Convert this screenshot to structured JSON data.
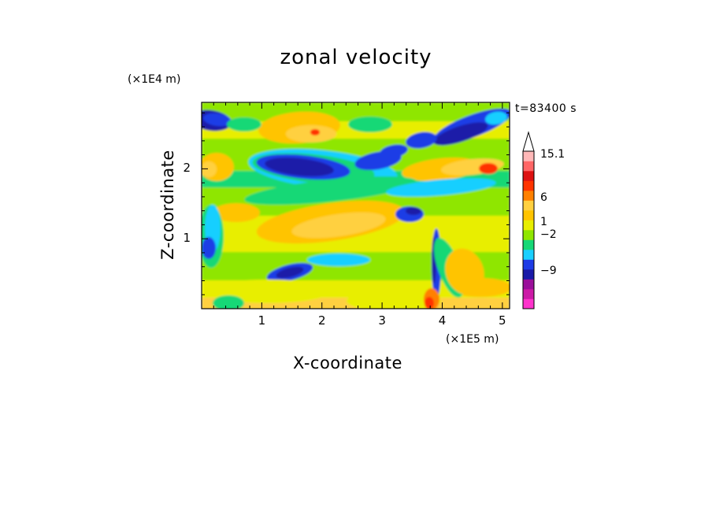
{
  "chart_data": {
    "type": "heatmap",
    "title": "zonal velocity",
    "xlabel": "X-coordinate",
    "ylabel": "Z-coordinate",
    "x_unit_label": "(×1E5 m)",
    "y_unit_label": "(×1E4 m)",
    "annotation": "t=83400 s",
    "xlim": [
      0,
      5.12
    ],
    "ylim": [
      0,
      2.95
    ],
    "x_ticks": [
      1,
      2,
      3,
      4,
      5
    ],
    "y_ticks": [
      1,
      2
    ],
    "colorbar": {
      "labels": [
        {
          "text": "15.1",
          "value": 15.1
        },
        {
          "text": "6",
          "value": 6
        },
        {
          "text": "1",
          "value": 1
        },
        {
          "text": "−2",
          "value": -2
        },
        {
          "text": "−9",
          "value": -9
        }
      ],
      "colors": [
        "#ff33cc",
        "#cc1aa6",
        "#9a0f9a",
        "#1a1aa8",
        "#1e3ce6",
        "#19cfff",
        "#16d876",
        "#8fe600",
        "#e8ee00",
        "#ffc400",
        "#ffd040",
        "#ff8000",
        "#ff3300",
        "#dd1111",
        "#ff6666",
        "#ffb8b8"
      ]
    }
  }
}
